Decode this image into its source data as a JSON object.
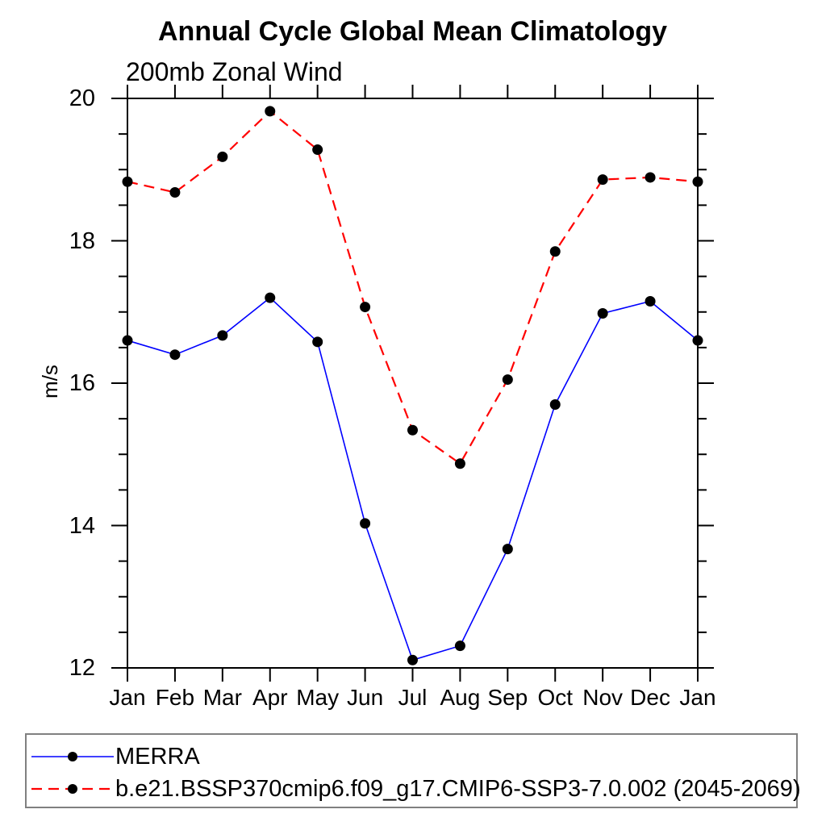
{
  "title": "Annual Cycle Global Mean Climatology",
  "subtitle": "200mb Zonal Wind",
  "y_axis": {
    "label": "m/s",
    "tick_labels": [
      "12",
      "14",
      "16",
      "18",
      "20"
    ]
  },
  "x_axis": {
    "tick_labels": [
      "Jan",
      "Feb",
      "Mar",
      "Apr",
      "May",
      "Jun",
      "Jul",
      "Aug",
      "Sep",
      "Oct",
      "Nov",
      "Dec",
      "Jan"
    ]
  },
  "legend": {
    "items": [
      {
        "label": "MERRA",
        "color": "#0000ff",
        "line_style": "solid",
        "marker": "filled-circle"
      },
      {
        "label": "b.e21.BSSP370cmip6.f09_g17.CMIP6-SSP3-7.0.002 (2045-2069)",
        "color": "#ff0000",
        "line_style": "dashed",
        "marker": "filled-circle"
      }
    ]
  },
  "colors": {
    "background": "#ffffff",
    "axis": "#000000",
    "text": "#000000",
    "marker": "#000000",
    "merra_line": "#0000ff",
    "model_line": "#ff0000",
    "legend_border": "#808080"
  },
  "chart_data": {
    "type": "line",
    "title": "Annual Cycle Global Mean Climatology",
    "subtitle": "200mb Zonal Wind",
    "xlabel": "",
    "ylabel": "m/s",
    "categories": [
      "Jan",
      "Feb",
      "Mar",
      "Apr",
      "May",
      "Jun",
      "Jul",
      "Aug",
      "Sep",
      "Oct",
      "Nov",
      "Dec",
      "Jan"
    ],
    "series": [
      {
        "name": "MERRA",
        "color": "#0000ff",
        "line_style": "solid",
        "marker": "filled-circle-black",
        "values": [
          16.6,
          16.4,
          16.67,
          17.2,
          16.58,
          14.03,
          12.11,
          12.31,
          13.67,
          15.7,
          16.98,
          17.15,
          16.6
        ]
      },
      {
        "name": "b.e21.BSSP370cmip6.f09_g17.CMIP6-SSP3-7.0.002 (2045-2069)",
        "color": "#ff0000",
        "line_style": "dashed",
        "marker": "filled-circle-black",
        "values": [
          18.83,
          18.68,
          19.18,
          19.82,
          19.28,
          17.07,
          15.34,
          14.87,
          16.05,
          17.85,
          18.86,
          18.89,
          18.83
        ]
      }
    ],
    "ylim": [
      12,
      20
    ],
    "y_major_step": 2,
    "y_minor_step": 0.5,
    "grid": false,
    "ticks": "outward-all-four-sides",
    "legend_position": "bottom-left-box"
  }
}
